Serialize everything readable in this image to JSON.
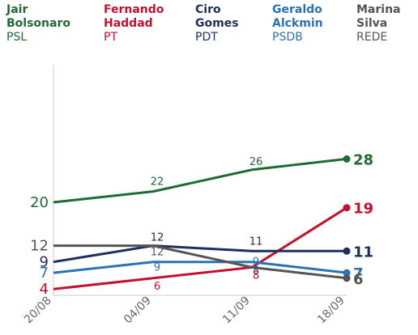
{
  "legend": [
    {
      "name_lines": [
        "Jair",
        "Bolsonaro"
      ],
      "party": "PSL",
      "color": "#1e6b34"
    },
    {
      "name_lines": [
        "Fernando",
        "Haddad"
      ],
      "party": "PT",
      "color": "#c8102e"
    },
    {
      "name_lines": [
        "Ciro",
        "Gomes"
      ],
      "party": "PDT",
      "color": "#1f2f5c"
    },
    {
      "name_lines": [
        "Geraldo",
        "Alckmin"
      ],
      "party": "PSDB",
      "color": "#2a73b8"
    },
    {
      "name_lines": [
        "Marina",
        "Silva"
      ],
      "party": "REDE",
      "color": "#555555"
    }
  ],
  "chart_data": {
    "type": "line",
    "categories": [
      "20/08",
      "04/09",
      "11/09",
      "18/09"
    ],
    "ylim": [
      0,
      35
    ],
    "grid": false,
    "series": [
      {
        "name": "Jair Bolsonaro",
        "color": "#1e6b34",
        "values": [
          20,
          22,
          26,
          28
        ]
      },
      {
        "name": "Fernando Haddad",
        "color": "#c8102e",
        "values": [
          4,
          6,
          8,
          19
        ]
      },
      {
        "name": "Ciro Gomes",
        "color": "#1f2f5c",
        "values": [
          9,
          12,
          11,
          11
        ]
      },
      {
        "name": "Geraldo Alckmin",
        "color": "#2a73b8",
        "values": [
          7,
          9,
          9,
          7
        ]
      },
      {
        "name": "Marina Silva",
        "color": "#555555",
        "values": [
          12,
          12,
          8,
          6
        ]
      }
    ]
  }
}
